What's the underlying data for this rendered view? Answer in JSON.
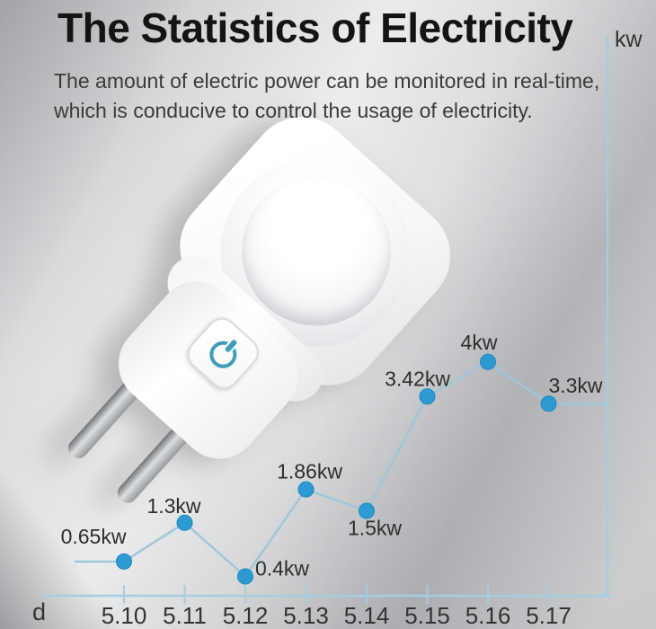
{
  "header": {
    "title": "The Statistics of Electricity",
    "subtitle_line1": "The amount of electric power can be monitored in real-time,",
    "subtitle_line2": "which is conducive to control the usage of electricity."
  },
  "plug": {
    "button_icon": "power-symbol",
    "button_icon_color": "#3f9cbc"
  },
  "chart_data": {
    "type": "line",
    "title": "",
    "xlabel": "d",
    "ylabel": "kw",
    "categories": [
      "5.10",
      "5.11",
      "5.12",
      "5.13",
      "5.14",
      "5.15",
      "5.16",
      "5.17"
    ],
    "values": [
      0.65,
      1.3,
      0.4,
      1.86,
      1.5,
      3.42,
      4,
      3.3
    ],
    "point_labels": [
      "0.65kw",
      "1.3kw",
      "0.4kw",
      "1.86kw",
      "1.5kw",
      "3.42kw",
      "4kw",
      "3.3kw"
    ],
    "ylim": [
      0,
      4.5
    ],
    "grid": false,
    "legend": null,
    "axis_position": {
      "x_axis": "bottom",
      "y_axis": "right"
    },
    "colors": {
      "point": "#2d9bd2",
      "point_edge": "#1f87bd",
      "line": "#9fc6da",
      "axis": "#a5cde0",
      "label_text": "#2e2e2e",
      "tick_text": "#333333"
    }
  }
}
